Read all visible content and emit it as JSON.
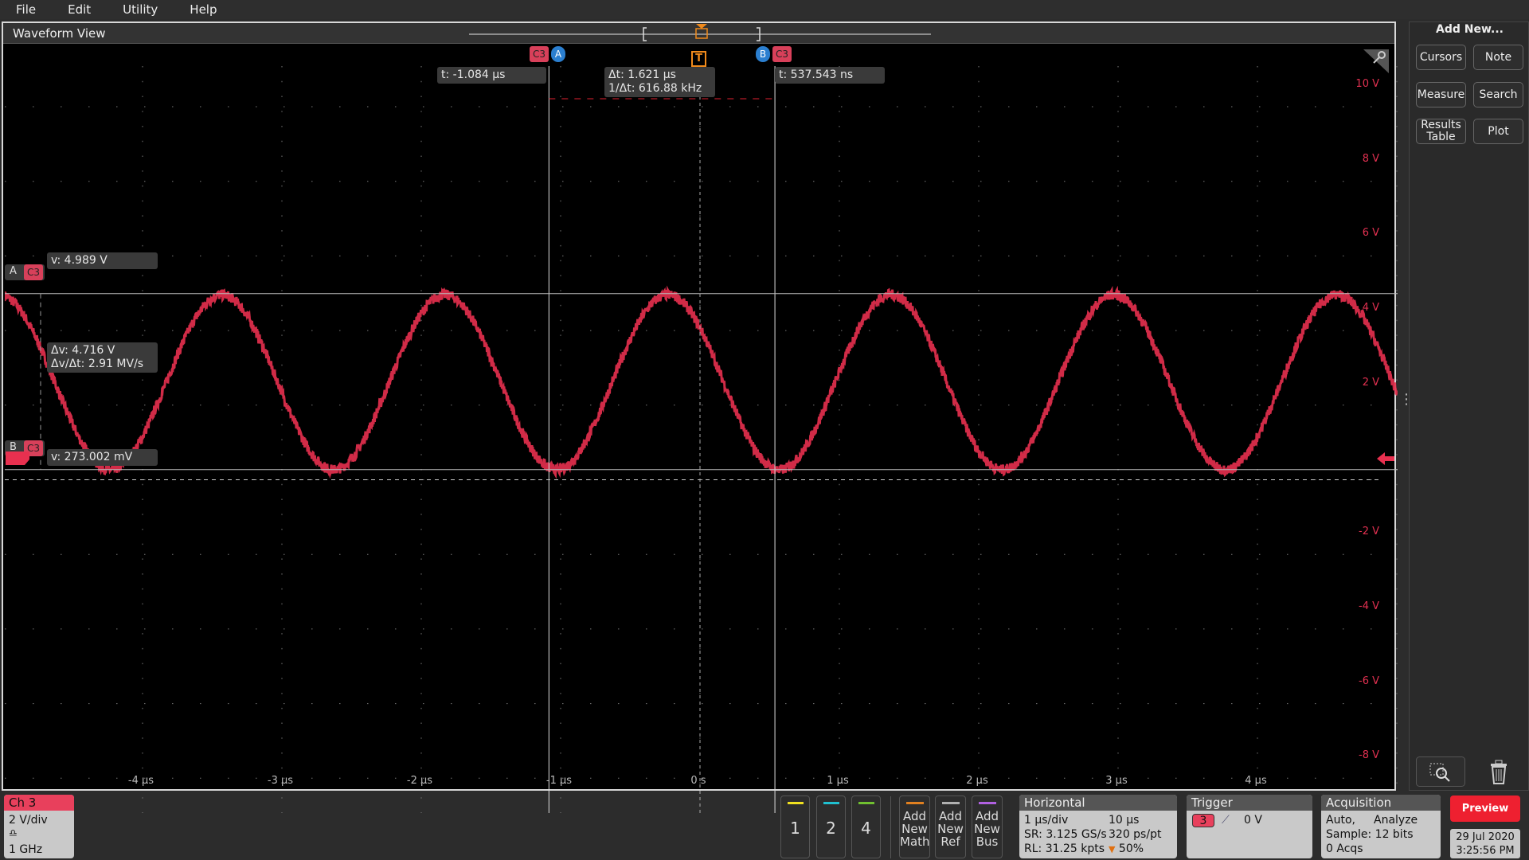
{
  "menu": [
    "File",
    "Edit",
    "Utility",
    "Help"
  ],
  "waveform_view": {
    "title": "Waveform View"
  },
  "colors": {
    "ch3": "#e8304f",
    "ch1": "#f0e020",
    "ch2": "#20c0d0",
    "ch4": "#70c030",
    "math": "#e08020",
    "ref": "#b0b0b0",
    "bus": "#b060e0",
    "cursor_b": "#2b7fd0",
    "trigger": "#f08a1c",
    "preview": "#ee2030"
  },
  "cursors": {
    "a_tag": "A",
    "b_tag": "B",
    "source": "C3",
    "a_time": "t: -1.084 µs",
    "b_time": "t: 537.543 ns",
    "delta_t": "Δt: 1.621 µs",
    "inv_delta_t": "1/Δt: 616.88 kHz",
    "a_volt": "v: 4.989 V",
    "b_volt": "v: 273.002 mV",
    "delta_v": "Δv: 4.716 V",
    "dv_dt": "Δv/Δt: 2.91 MV/s",
    "a_t_us": -1.084,
    "b_t_us": 0.537543,
    "a_v": 4.989,
    "b_v": 0.273002
  },
  "trigger_marker": "T",
  "y_axis": {
    "labels": [
      "10 V",
      "8 V",
      "6 V",
      "4 V",
      "2 V",
      "0",
      "-2 V",
      "-4 V",
      "-6 V",
      "-8 V"
    ],
    "values": [
      10,
      8,
      6,
      4,
      2,
      0,
      -2,
      -4,
      -6,
      -8
    ],
    "volts_per_div": 2
  },
  "x_axis": {
    "labels": [
      "-4 µs",
      "-3 µs",
      "-2 µs",
      "-1 µs",
      "0 s",
      "1 µs",
      "2 µs",
      "3 µs",
      "4 µs"
    ],
    "values": [
      -4,
      -3,
      -2,
      -1,
      0,
      1,
      2,
      3,
      4
    ],
    "range_us": [
      -5,
      5
    ]
  },
  "signal": {
    "max_v": 4.96,
    "min_v": 0.27,
    "period_us": 1.6
  },
  "right_panel": {
    "title": "Add New...",
    "buttons": [
      "Cursors",
      "Note",
      "Measure",
      "Search",
      "Results Table",
      "Plot"
    ]
  },
  "ch3_badge": {
    "title": "Ch 3",
    "scale": "2 V/div",
    "bandwidth": "1 GHz"
  },
  "channel_buttons": [
    "1",
    "2",
    "4"
  ],
  "add_buttons": [
    "Add New Math",
    "Add New Ref",
    "Add New Bus"
  ],
  "horizontal": {
    "title": "Horizontal",
    "scale": "1 µs/div",
    "duration": "10 µs",
    "sr": "SR: 3.125 GS/s",
    "res": "320 ps/pt",
    "rl": "RL: 31.25 kpts",
    "trig_pos": "50%"
  },
  "trigger": {
    "title": "Trigger",
    "source": "3",
    "level": "0 V"
  },
  "acquisition": {
    "title": "Acquisition",
    "mode": "Auto,",
    "analyze": "Analyze",
    "sample": "Sample: 12 bits",
    "acqs": "0 Acqs"
  },
  "preview_label": "Preview",
  "date": "29 Jul 2020",
  "time": "3:25:56 PM"
}
